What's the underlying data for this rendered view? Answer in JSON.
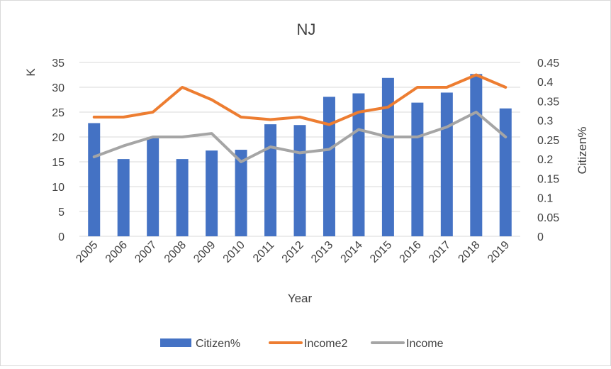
{
  "chart_data": {
    "type": "bar",
    "title": "NJ",
    "xlabel": "Year",
    "ylabel": "K",
    "y2label": "Citizen%",
    "categories": [
      "2005",
      "2006",
      "2007",
      "2008",
      "2009",
      "2010",
      "2011",
      "2012",
      "2013",
      "2014",
      "2015",
      "2016",
      "2017",
      "2018",
      "2019"
    ],
    "ylim": [
      0,
      35
    ],
    "yticks": [
      "0",
      "5",
      "10",
      "15",
      "20",
      "25",
      "30",
      "35"
    ],
    "y2lim": [
      0,
      0.45
    ],
    "y2ticks": [
      "0",
      "0.05",
      "0.1",
      "0.15",
      "0.2",
      "0.25",
      "0.3",
      "0.35",
      "0.4",
      "0.45"
    ],
    "grid": true,
    "legend_position": "bottom",
    "series": [
      {
        "name": "Citizen%",
        "type": "bar",
        "axis": "right",
        "color": "#4472C4",
        "values": [
          0.293,
          0.2,
          0.255,
          0.2,
          0.222,
          0.224,
          0.29,
          0.288,
          0.361,
          0.37,
          0.41,
          0.346,
          0.372,
          0.42,
          0.331
        ]
      },
      {
        "name": "Income2",
        "type": "line",
        "axis": "left",
        "color": "#ED7D31",
        "values": [
          24,
          24,
          25,
          30,
          27.5,
          24,
          23.5,
          24,
          22.5,
          25,
          26,
          30,
          30,
          32.5,
          30
        ]
      },
      {
        "name": "Income",
        "type": "line",
        "axis": "left",
        "color": "#A5A5A5",
        "values": [
          16,
          18.2,
          20,
          20,
          20.7,
          15,
          18,
          16.8,
          17.5,
          21.5,
          20,
          20,
          22,
          25,
          20
        ]
      }
    ]
  }
}
